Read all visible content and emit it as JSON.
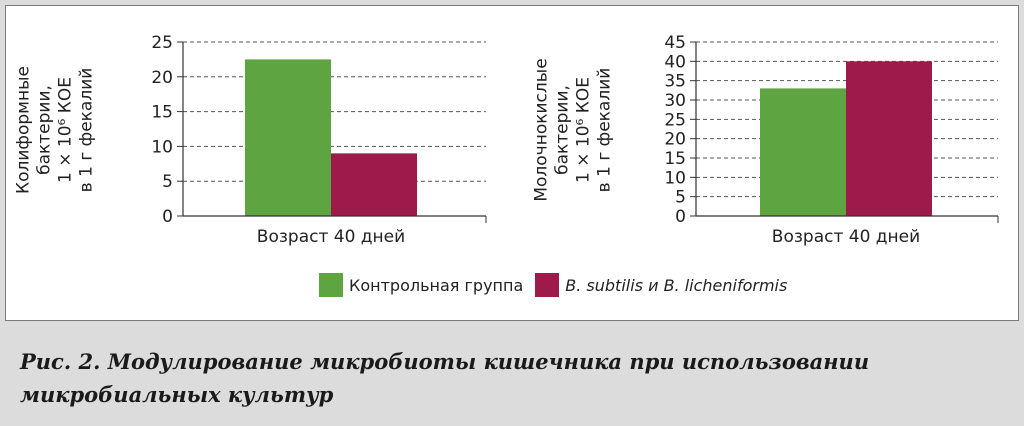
{
  "colors": {
    "control": "#5ea441",
    "treatment": "#9e1a4b"
  },
  "legend": [
    {
      "label": "Контрольная группа",
      "color": "#5ea441",
      "italic": false
    },
    {
      "label": "B. subtilis и B. licheniformis",
      "color": "#9e1a4b",
      "italic": true
    }
  ],
  "caption": {
    "line1": "Рис. 2. Модулирование микробиоты кишечника при использовании",
    "line2": "микробиальных культур"
  },
  "chart_data": [
    {
      "type": "bar",
      "categories": [
        "Возраст 40 дней"
      ],
      "series": [
        {
          "name": "Контрольная группа",
          "values": [
            22.5
          ]
        },
        {
          "name": "B. subtilis и B. licheniformis",
          "values": [
            9
          ]
        }
      ],
      "ylabel_lines": [
        "Колиформные",
        "бактерии,",
        "1 × 10⁶ КОЕ",
        "в 1 г фекалий"
      ],
      "ylim": [
        0,
        25
      ],
      "yticks": [
        0,
        5,
        10,
        15,
        20,
        25
      ],
      "grid": "dashed",
      "legend_position": "bottom"
    },
    {
      "type": "bar",
      "categories": [
        "Возраст 40 дней"
      ],
      "series": [
        {
          "name": "Контрольная группа",
          "values": [
            33
          ]
        },
        {
          "name": "B. subtilis и B. licheniformis",
          "values": [
            40
          ]
        }
      ],
      "ylabel_lines": [
        "Молочнокислые",
        "бактерии,",
        "1 × 10⁶ КОЕ",
        "в 1 г фекалий"
      ],
      "ylim": [
        0,
        45
      ],
      "yticks": [
        0,
        5,
        10,
        15,
        20,
        25,
        30,
        35,
        40,
        45
      ],
      "grid": "dashed",
      "legend_position": "bottom"
    }
  ]
}
